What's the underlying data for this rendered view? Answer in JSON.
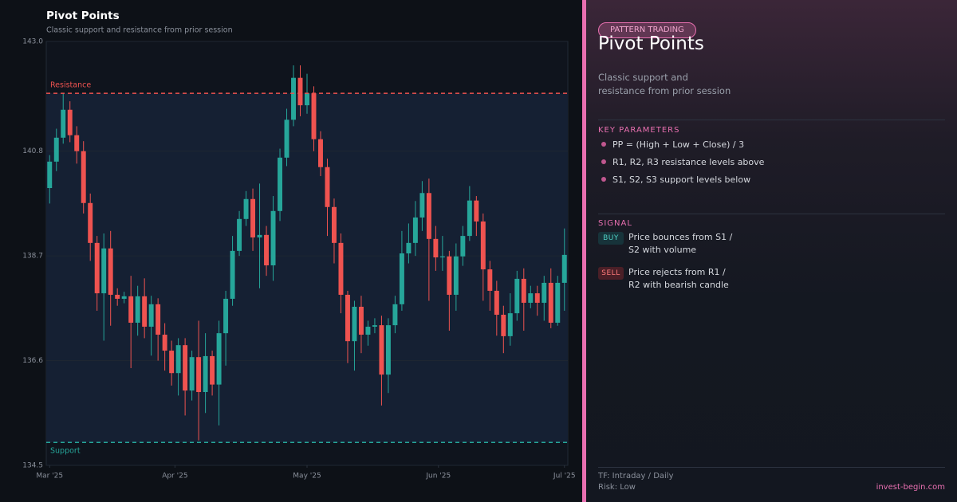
{
  "chart_data": {
    "type": "candlestick",
    "title": "Pivot Points",
    "subtitle": "Classic support and resistance from prior session",
    "up_color": "#26a69a",
    "down_color": "#ef5350",
    "open": [
      140.06,
      140.59,
      141.07,
      141.63,
      141.12,
      140.8,
      139.76,
      138.96,
      137.95,
      138.85,
      137.92,
      137.84,
      137.89,
      137.36,
      137.89,
      137.28,
      137.73,
      137.12,
      136.8,
      136.35,
      136.91,
      136.0,
      136.67,
      135.97,
      136.69,
      136.12,
      137.15,
      137.84,
      138.8,
      139.44,
      139.84,
      139.07,
      139.12,
      138.51,
      139.6,
      140.67,
      141.43,
      142.27,
      141.72,
      141.96,
      141.04,
      140.48,
      139.68,
      138.96,
      137.92,
      136.99,
      137.68,
      137.12,
      137.28,
      137.31,
      136.32,
      137.31,
      137.73,
      138.75,
      138.96,
      139.47,
      139.96,
      139.04,
      138.67,
      138.69,
      137.92,
      138.69,
      139.1,
      139.81,
      139.39,
      138.43,
      138.0,
      137.52,
      137.09,
      137.55,
      138.24,
      137.76,
      137.95,
      137.76,
      138.16,
      137.36,
      138.16
    ],
    "high": [
      140.72,
      141.25,
      141.96,
      141.8,
      141.3,
      141.0,
      139.95,
      139.1,
      139.15,
      139.2,
      138.05,
      137.98,
      138.3,
      138.1,
      138.25,
      137.9,
      137.85,
      137.35,
      137.0,
      137.05,
      137.05,
      136.8,
      137.4,
      137.15,
      136.8,
      137.4,
      138.0,
      139.1,
      139.6,
      140.0,
      140.05,
      140.15,
      139.3,
      139.9,
      140.85,
      141.65,
      142.52,
      142.52,
      142.35,
      142.1,
      141.2,
      140.65,
      139.85,
      139.15,
      138.0,
      137.8,
      137.9,
      137.4,
      137.45,
      137.5,
      137.45,
      137.9,
      139.2,
      139.35,
      139.8,
      140.2,
      140.25,
      139.3,
      139.1,
      138.8,
      138.95,
      139.3,
      140.1,
      139.9,
      139.55,
      138.6,
      138.2,
      137.7,
      137.95,
      138.4,
      138.45,
      138.1,
      138.1,
      138.3,
      138.45,
      138.3,
      139.25
    ],
    "low": [
      139.75,
      140.4,
      140.95,
      140.98,
      140.55,
      139.55,
      138.6,
      137.6,
      137.0,
      137.3,
      137.7,
      137.75,
      136.45,
      137.1,
      137.05,
      136.7,
      136.6,
      136.4,
      136.1,
      135.9,
      135.5,
      135.8,
      135.0,
      135.55,
      135.9,
      135.3,
      136.5,
      137.7,
      138.7,
      139.3,
      138.8,
      138.05,
      138.3,
      138.2,
      139.4,
      140.5,
      141.3,
      141.5,
      141.55,
      140.8,
      140.3,
      139.1,
      138.55,
      137.55,
      136.55,
      136.4,
      136.75,
      136.9,
      137.15,
      135.7,
      135.95,
      137.15,
      137.6,
      138.55,
      138.7,
      139.2,
      137.8,
      138.4,
      138.4,
      137.2,
      137.6,
      138.5,
      139.0,
      139.1,
      137.8,
      137.6,
      137.1,
      136.75,
      136.9,
      137.4,
      137.2,
      137.65,
      137.5,
      137.4,
      137.25,
      137.3,
      137.6
    ],
    "close": [
      140.59,
      141.07,
      141.63,
      141.12,
      140.8,
      139.76,
      138.96,
      137.95,
      138.85,
      137.92,
      137.84,
      137.89,
      137.36,
      137.89,
      137.28,
      137.73,
      137.12,
      136.8,
      136.35,
      136.91,
      136.0,
      136.67,
      135.97,
      136.69,
      136.12,
      137.15,
      137.84,
      138.8,
      139.44,
      139.84,
      139.07,
      139.12,
      138.51,
      139.6,
      140.67,
      141.43,
      142.27,
      141.72,
      141.96,
      141.04,
      140.48,
      139.68,
      138.96,
      137.92,
      136.99,
      137.68,
      137.12,
      137.28,
      137.31,
      136.32,
      137.31,
      137.73,
      138.75,
      138.96,
      139.47,
      139.96,
      139.04,
      138.67,
      138.69,
      137.92,
      138.69,
      139.1,
      139.81,
      139.39,
      138.43,
      138.0,
      137.52,
      137.09,
      137.55,
      138.24,
      137.76,
      137.95,
      137.76,
      138.16,
      137.36,
      138.16,
      138.72
    ],
    "levels": [
      {
        "name": "Resistance",
        "value": 141.96,
        "color": "#ef5350"
      },
      {
        "name": "Support",
        "value": 134.96,
        "color": "#26a69a"
      }
    ],
    "xlim": [
      -0.5,
      76.5
    ],
    "xticks": [
      {
        "value": 0,
        "label": "Mar '25"
      },
      {
        "value": 18.5,
        "label": "Apr '25"
      },
      {
        "value": 38,
        "label": "May '25"
      },
      {
        "value": 57.4,
        "label": "Jun '25"
      },
      {
        "value": 76,
        "label": "Jul '25"
      }
    ],
    "ylim": [
      134.5,
      143.0
    ],
    "yticks": [
      134.5,
      136.6,
      138.7,
      140.8,
      {
        "value": 143.0,
        "label": "143.0"
      }
    ],
    "grid": true
  },
  "panel": {
    "badge": "PATTERN TRADING",
    "title": "Pivot Points",
    "description": "Classic support and resistance from prior session",
    "parameters_heading": "KEY PARAMETERS",
    "parameters": [
      "PP = (High + Low + Close) / 3",
      "R1, R2, R3 resistance levels above",
      "S1, S2, S3 support levels below"
    ],
    "signal_heading": "SIGNAL",
    "signals": [
      {
        "tag": "BUY",
        "text": "Price bounces from S1 / S2 with volume"
      },
      {
        "tag": "SELL",
        "text": "Price rejects from R1 / R2 with bearish candle"
      }
    ],
    "timeframe": "TF: Intraday / Daily",
    "risk": "Risk: Low",
    "site": "invest-begin.com"
  }
}
